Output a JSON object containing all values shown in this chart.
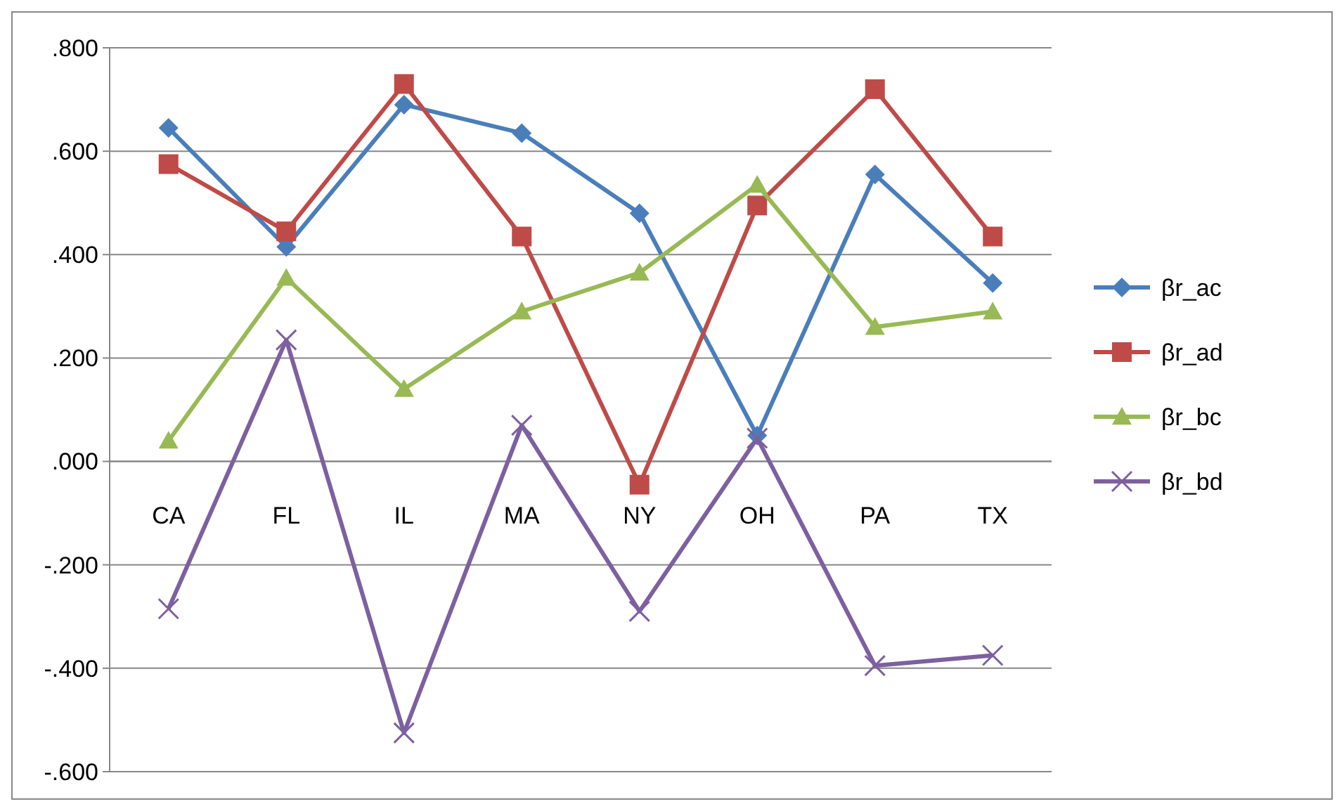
{
  "chart_data": {
    "type": "line",
    "categories": [
      "CA",
      "FL",
      "IL",
      "MA",
      "NY",
      "OH",
      "PA",
      "TX"
    ],
    "series": [
      {
        "name": "βr_ac",
        "color": "#4a7ebb",
        "marker": "diamond",
        "values": [
          0.645,
          0.415,
          0.69,
          0.635,
          0.48,
          0.05,
          0.555,
          0.345
        ]
      },
      {
        "name": "βr_ad",
        "color": "#be4b48",
        "marker": "square",
        "values": [
          0.575,
          0.445,
          0.73,
          0.435,
          -0.045,
          0.495,
          0.72,
          0.435
        ]
      },
      {
        "name": "βr_bc",
        "color": "#98b954",
        "marker": "triangle",
        "values": [
          0.04,
          0.355,
          0.14,
          0.29,
          0.365,
          0.535,
          0.26,
          0.29
        ]
      },
      {
        "name": "βr_bd",
        "color": "#7d60a0",
        "marker": "cross",
        "values": [
          -0.285,
          0.235,
          -0.525,
          0.07,
          -0.29,
          0.045,
          -0.395,
          -0.375
        ]
      }
    ],
    "ylim": [
      -0.6,
      0.8
    ],
    "yticks": [
      {
        "value": -0.6,
        "label": "-.600"
      },
      {
        "value": -0.4,
        "label": "-.400"
      },
      {
        "value": -0.2,
        "label": "-.200"
      },
      {
        "value": 0,
        "label": ".000"
      },
      {
        "value": 0.2,
        "label": ".200"
      },
      {
        "value": 0.4,
        "label": ".400"
      },
      {
        "value": 0.6,
        "label": ".600"
      },
      {
        "value": 0.8,
        "label": ".800"
      }
    ],
    "grid": "y",
    "legend": "right",
    "line_style": "solid"
  }
}
